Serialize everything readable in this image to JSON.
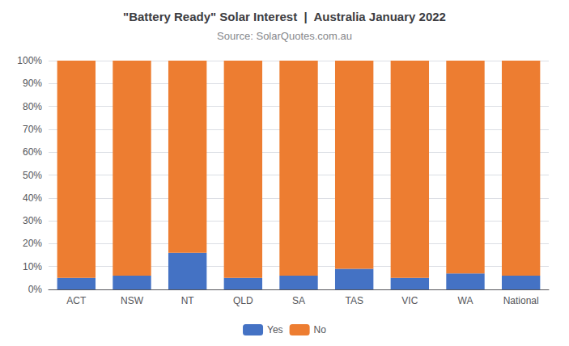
{
  "chart_data": {
    "type": "bar",
    "title": "\"Battery Ready\" Solar Interest  |  Australia January 2022",
    "subtitle": "Source: SolarQuotes.com.au",
    "categories": [
      "ACT",
      "NSW",
      "NT",
      "QLD",
      "SA",
      "TAS",
      "VIC",
      "WA",
      "National"
    ],
    "series": [
      {
        "name": "Yes",
        "color": "#4472C4",
        "values": [
          5,
          6,
          16,
          5,
          6,
          9,
          5,
          7,
          6
        ]
      },
      {
        "name": "No",
        "color": "#ED7D31",
        "values": [
          95,
          94,
          84,
          95,
          94,
          91,
          95,
          93,
          94
        ]
      }
    ],
    "stacked": true,
    "ylim": [
      0,
      100
    ],
    "yticks": [
      {
        "value": 0,
        "label": "0%"
      },
      {
        "value": 10,
        "label": "10%"
      },
      {
        "value": 20,
        "label": "20%"
      },
      {
        "value": 30,
        "label": "30%"
      },
      {
        "value": 40,
        "label": "40%"
      },
      {
        "value": 50,
        "label": "50%"
      },
      {
        "value": 60,
        "label": "60%"
      },
      {
        "value": 70,
        "label": "70%"
      },
      {
        "value": 80,
        "label": "80%"
      },
      {
        "value": 90,
        "label": "90%"
      },
      {
        "value": 100,
        "label": "100%"
      }
    ],
    "grid": true,
    "legend": "bottom"
  }
}
